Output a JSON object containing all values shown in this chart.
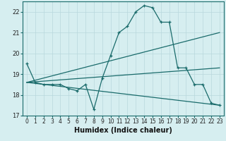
{
  "xlabel": "Humidex (Indice chaleur)",
  "bg_color": "#d6eef0",
  "grid_color": "#b8d8dc",
  "line_color": "#1a6b6b",
  "xlim": [
    -0.5,
    23.5
  ],
  "ylim": [
    17,
    22.5
  ],
  "yticks": [
    17,
    18,
    19,
    20,
    21,
    22
  ],
  "xticks": [
    0,
    1,
    2,
    3,
    4,
    5,
    6,
    7,
    8,
    9,
    10,
    11,
    12,
    13,
    14,
    15,
    16,
    17,
    18,
    19,
    20,
    21,
    22,
    23
  ],
  "lines": [
    {
      "x": [
        0,
        1,
        2,
        3,
        4,
        5,
        6,
        7,
        8,
        9,
        10,
        11,
        12,
        13,
        14,
        15,
        16,
        17,
        18,
        19,
        20,
        21,
        22,
        23
      ],
      "y": [
        19.5,
        18.6,
        18.5,
        18.5,
        18.5,
        18.3,
        18.2,
        18.5,
        17.3,
        18.8,
        19.9,
        21.0,
        21.3,
        22.0,
        22.3,
        22.2,
        21.5,
        21.5,
        19.3,
        19.3,
        18.5,
        18.5,
        17.6,
        17.5
      ],
      "marker": true
    },
    {
      "x": [
        0,
        23
      ],
      "y": [
        18.6,
        21.0
      ],
      "marker": false
    },
    {
      "x": [
        0,
        23
      ],
      "y": [
        18.6,
        19.3
      ],
      "marker": false
    },
    {
      "x": [
        0,
        23
      ],
      "y": [
        18.6,
        17.5
      ],
      "marker": false
    }
  ]
}
